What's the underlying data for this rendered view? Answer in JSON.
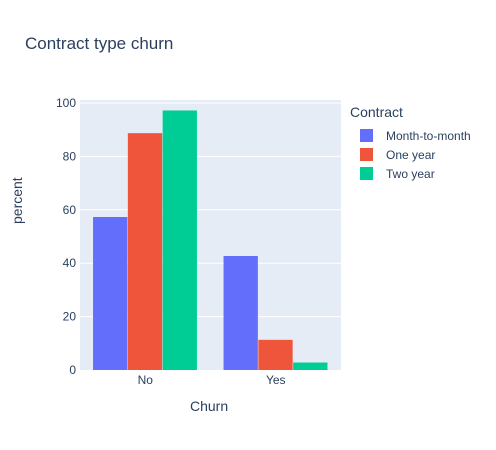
{
  "chart_data": {
    "type": "bar",
    "title": "Contract type churn",
    "xlabel": "Churn",
    "ylabel": "percent",
    "categories": [
      "No",
      "Yes"
    ],
    "ylim": [
      0,
      100
    ],
    "yticks": [
      0,
      20,
      40,
      60,
      80,
      100
    ],
    "grid": true,
    "legend_title": "Contract",
    "legend_position": "right",
    "series": [
      {
        "name": "Month-to-month",
        "color": "#636efa",
        "values": [
          57.3,
          42.7
        ]
      },
      {
        "name": "One year",
        "color": "#ef553b",
        "values": [
          88.7,
          11.3
        ]
      },
      {
        "name": "Two year",
        "color": "#00cc96",
        "values": [
          97.2,
          2.8
        ]
      }
    ]
  }
}
